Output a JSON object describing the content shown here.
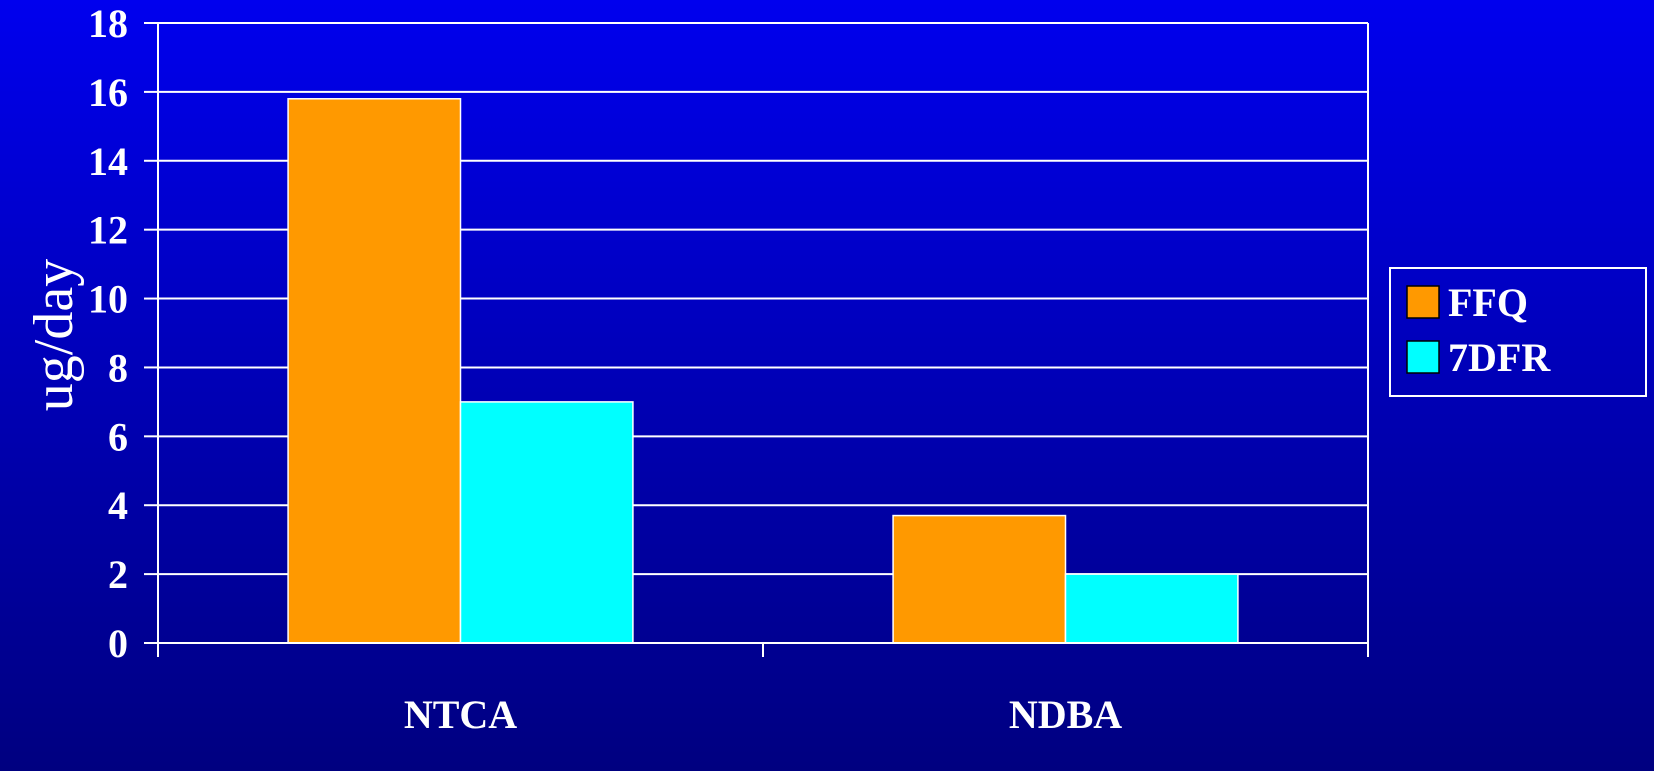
{
  "chart_data": {
    "type": "bar",
    "categories": [
      "NTCA",
      "NDBA"
    ],
    "series": [
      {
        "name": "FFQ",
        "values": [
          15.8,
          3.7
        ],
        "color": "#ff9900"
      },
      {
        "name": "7DFR",
        "values": [
          7.0,
          2.0
        ],
        "color": "#00ffff"
      }
    ],
    "ylabel": "ug/day",
    "xlabel": "",
    "title": "",
    "ylim": [
      0,
      18
    ],
    "yticks": [
      0,
      2,
      4,
      6,
      8,
      10,
      12,
      14,
      16,
      18
    ],
    "grid": true,
    "legend_position": "right"
  }
}
